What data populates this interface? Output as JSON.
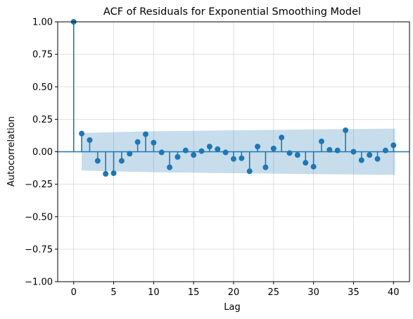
{
  "chart_data": {
    "type": "stem",
    "title": "ACF of Residuals for Exponential Smoothing Model",
    "xlabel": "Lag",
    "ylabel": "Autocorrelation",
    "xlim": [
      -2,
      42
    ],
    "ylim": [
      -1.0,
      1.0
    ],
    "xticks": [
      0,
      5,
      10,
      15,
      20,
      25,
      30,
      35,
      40
    ],
    "yticks": [
      -1.0,
      -0.75,
      -0.5,
      -0.25,
      0.0,
      0.25,
      0.5,
      0.75,
      1.0
    ],
    "ytick_labels": [
      "−1.00",
      "−0.75",
      "−0.50",
      "−0.25",
      "0.00",
      "0.25",
      "0.50",
      "0.75",
      "1.00"
    ],
    "grid": true,
    "lags": [
      0,
      1,
      2,
      3,
      4,
      5,
      6,
      7,
      8,
      9,
      10,
      11,
      12,
      13,
      14,
      15,
      16,
      17,
      18,
      19,
      20,
      21,
      22,
      23,
      24,
      25,
      26,
      27,
      28,
      29,
      30,
      31,
      32,
      33,
      34,
      35,
      36,
      37,
      38,
      39,
      40
    ],
    "values": [
      1.0,
      0.14,
      0.09,
      -0.07,
      -0.17,
      -0.165,
      -0.07,
      -0.015,
      0.075,
      0.135,
      0.07,
      -0.005,
      -0.12,
      -0.04,
      0.01,
      -0.025,
      0.005,
      0.04,
      0.02,
      -0.005,
      -0.055,
      -0.05,
      -0.15,
      0.04,
      -0.12,
      0.025,
      0.11,
      -0.01,
      -0.025,
      -0.085,
      -0.115,
      0.08,
      0.015,
      0.01,
      0.165,
      0.0,
      -0.065,
      -0.025,
      -0.055,
      0.01,
      0.05
    ],
    "confidence_band": {
      "lags": [
        1,
        10,
        20,
        30,
        40.2
      ],
      "upper": [
        0.145,
        0.158,
        0.165,
        0.172,
        0.178
      ]
    },
    "colors": {
      "series": "#1f77b4",
      "band": "#1f77b4",
      "grid": "#b0b0b0"
    }
  }
}
